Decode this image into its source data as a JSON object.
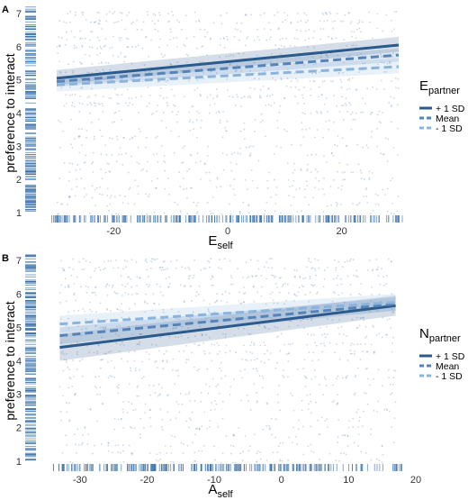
{
  "chart_data": [
    {
      "type": "line",
      "panel_label": "A",
      "title": "",
      "xlabel_main": "E",
      "xlabel_sub": "self",
      "ylabel": "preference to interact",
      "xlim": [
        -33,
        33
      ],
      "ylim": [
        0.7,
        7.3
      ],
      "x_ticks": [
        -20,
        0,
        20
      ],
      "x_tick_labels": [
        "-20",
        "0",
        "20"
      ],
      "y_ticks": [
        1,
        2,
        3,
        4,
        5,
        6,
        7
      ],
      "y_tick_labels": [
        "1",
        "2",
        "3",
        "4",
        "5",
        "6",
        "7"
      ],
      "grid": false,
      "legend": {
        "title_main": "E",
        "title_sub": "partner",
        "position": "right",
        "entries": [
          "+ 1 SD",
          "Mean",
          "- 1 SD"
        ]
      },
      "series": [
        {
          "name": "+ 1 SD",
          "x": [
            -30,
            30
          ],
          "y": [
            5.05,
            6.05
          ],
          "ci_low": [
            4.85,
            5.85
          ],
          "ci_high": [
            5.3,
            6.3
          ],
          "color": "#2b5a8c",
          "dash": "solid"
        },
        {
          "name": "Mean",
          "x": [
            -30,
            30
          ],
          "y": [
            4.95,
            5.75
          ],
          "ci_low": [
            4.8,
            5.55
          ],
          "ci_high": [
            5.1,
            5.95
          ],
          "color": "#5683b8",
          "dash": "dashed"
        },
        {
          "name": "- 1 SD",
          "x": [
            -30,
            30
          ],
          "y": [
            4.85,
            5.4
          ],
          "ci_low": [
            4.65,
            5.2
          ],
          "ci_high": [
            5.05,
            5.65
          ],
          "color": "#8ab4de",
          "dash": "dashed"
        }
      ]
    },
    {
      "type": "line",
      "panel_label": "B",
      "title": "",
      "xlabel_main": "A",
      "xlabel_sub": "self",
      "ylabel": "preference to interact",
      "xlim": [
        -36,
        20
      ],
      "ylim": [
        0.7,
        7.3
      ],
      "x_ticks": [
        -30,
        -20,
        -10,
        0,
        10,
        20
      ],
      "x_tick_labels": [
        "-30",
        "-20",
        "-10",
        "0",
        "10",
        "20"
      ],
      "y_ticks": [
        1,
        2,
        3,
        4,
        5,
        6,
        7
      ],
      "y_tick_labels": [
        "1",
        "2",
        "3",
        "4",
        "5",
        "6",
        "7"
      ],
      "grid": false,
      "legend": {
        "title_main": "N",
        "title_sub": "partner",
        "position": "right",
        "entries": [
          "+ 1 SD",
          "Mean",
          "- 1 SD"
        ]
      },
      "series": [
        {
          "name": "+ 1 SD",
          "x": [
            -33,
            17
          ],
          "y": [
            4.4,
            5.65
          ],
          "ci_low": [
            4.0,
            5.35
          ],
          "ci_high": [
            4.8,
            5.95
          ],
          "color": "#2b5a8c",
          "dash": "solid"
        },
        {
          "name": "Mean",
          "x": [
            -33,
            17
          ],
          "y": [
            4.75,
            5.7
          ],
          "ci_low": [
            4.5,
            5.5
          ],
          "ci_high": [
            5.0,
            5.9
          ],
          "color": "#5683b8",
          "dash": "dashed"
        },
        {
          "name": "- 1 SD",
          "x": [
            -33,
            17
          ],
          "y": [
            5.1,
            5.75
          ],
          "ci_low": [
            4.85,
            5.5
          ],
          "ci_high": [
            5.35,
            6.0
          ],
          "color": "#8ab4de",
          "dash": "dashed"
        }
      ]
    }
  ]
}
